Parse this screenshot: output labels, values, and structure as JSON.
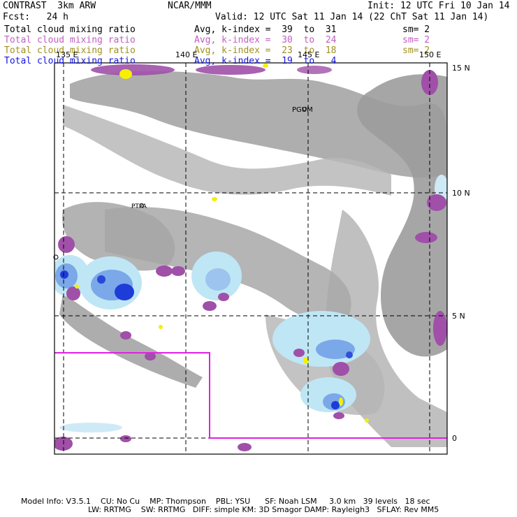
{
  "header": {
    "line1_left": "CONTRAST  3km ARW",
    "line1_center": "NCAR/MMM",
    "line1_right": "Init: 12 UTC Fri 10 Jan 14",
    "line2_left": "Fcst:   24 h",
    "line2_right": "Valid: 12 UTC Sat 11 Jan 14 (22 ChT Sat 11 Jan 14)"
  },
  "legend": [
    {
      "field": "Total cloud mixing ratio",
      "avg": "Avg, k-index =  39  to  31",
      "sm": "sm= 2",
      "color": "#000000"
    },
    {
      "field": "Total cloud mixing ratio",
      "avg": "Avg, k-index =  30  to  24",
      "sm": "sm= 2",
      "color": "#c060c0"
    },
    {
      "field": "Total cloud mixing ratio",
      "avg": "Avg, k-index =  23  to  18",
      "sm": "sm= 2",
      "color": "#a09020"
    },
    {
      "field": "Total cloud mixing ratio",
      "avg": "Avg, k-index =  19  to   4",
      "sm": "",
      "color": "#1414e6"
    }
  ],
  "map": {
    "lon_labels": [
      "135 E",
      "140 E",
      "145 E",
      "150 E"
    ],
    "lat_labels": [
      "15 N",
      "10 N",
      "5 N",
      "0"
    ],
    "stations": [
      "PGUM",
      "PTPA"
    ]
  },
  "footer": {
    "line1": "Model Info: V3.5.1    CU: No Cu    MP: Thompson    PBL: YSU      SF: Noah LSM     3.0 km   39 levels   18 sec",
    "line2": "LW: RRTMG    SW: RRTMG   DIFF: simple KM: 3D Smagor DAMP: Rayleigh3   SFLAY: Rev MM5"
  },
  "colors": {
    "gray_cloud": "#9a9a9a",
    "light_gray_cloud": "#c8c8c8",
    "magenta_cloud": "#a050a8",
    "light_blue": "#bfe6f5",
    "mid_blue": "#7aa8e8",
    "deep_blue": "#1e3cd8",
    "yellow": "#f5f000",
    "boundary": "#e020e0"
  }
}
